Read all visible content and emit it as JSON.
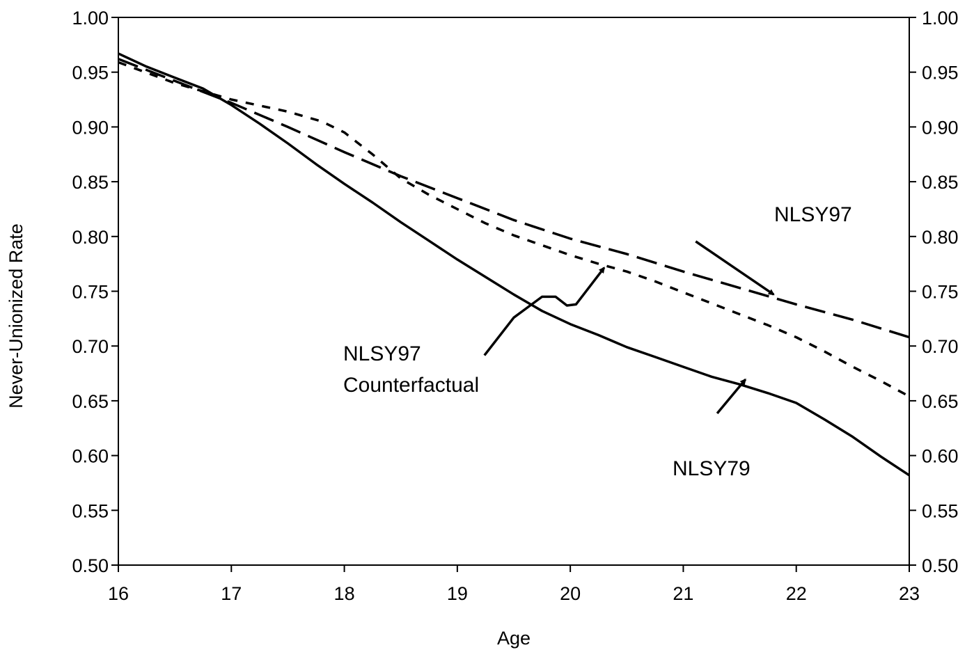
{
  "chart_data": {
    "type": "line",
    "title": "",
    "xlabel": "Age",
    "ylabel": "Never-Unionized Rate",
    "xlim": [
      16,
      23
    ],
    "ylim": [
      0.5,
      1.0
    ],
    "x_ticks": [
      "16",
      "17",
      "18",
      "19",
      "20",
      "21",
      "22",
      "23"
    ],
    "y_ticks": [
      "0.50",
      "0.55",
      "0.60",
      "0.65",
      "0.70",
      "0.75",
      "0.80",
      "0.85",
      "0.90",
      "0.95",
      "1.00"
    ],
    "right_axis": true,
    "grid": false,
    "legend": "none",
    "series": [
      {
        "name": "NLSY79",
        "style": "solid",
        "x": [
          16,
          16.25,
          16.5,
          16.75,
          17,
          17.25,
          17.5,
          17.75,
          18,
          18.25,
          18.5,
          18.75,
          19,
          19.25,
          19.5,
          19.75,
          20,
          20.25,
          20.5,
          20.75,
          21,
          21.25,
          21.5,
          21.75,
          22,
          22.25,
          22.5,
          22.75,
          23
        ],
        "y": [
          0.967,
          0.955,
          0.945,
          0.935,
          0.92,
          0.903,
          0.885,
          0.866,
          0.848,
          0.831,
          0.813,
          0.796,
          0.779,
          0.763,
          0.747,
          0.732,
          0.72,
          0.71,
          0.699,
          0.69,
          0.681,
          0.672,
          0.665,
          0.657,
          0.648,
          0.633,
          0.617,
          0.599,
          0.582
        ]
      },
      {
        "name": "NLSY97",
        "style": "dashed",
        "x": [
          16,
          16.5,
          17,
          17.5,
          18,
          18.5,
          19,
          19.5,
          20,
          20.5,
          21,
          21.5,
          22,
          22.5,
          23
        ],
        "y": [
          0.962,
          0.942,
          0.922,
          0.9,
          0.877,
          0.855,
          0.835,
          0.815,
          0.798,
          0.784,
          0.768,
          0.753,
          0.738,
          0.724,
          0.708
        ]
      },
      {
        "name": "NLSY97 Counterfactual",
        "style": "dotted",
        "x": [
          16,
          16.5,
          17,
          17.5,
          17.8,
          18,
          18.25,
          18.5,
          18.75,
          19,
          19.25,
          19.5,
          19.75,
          20,
          20.25,
          20.5,
          20.75,
          21,
          21.25,
          21.5,
          21.75,
          22,
          22.25,
          22.5,
          22.75,
          23
        ],
        "y": [
          0.959,
          0.94,
          0.925,
          0.914,
          0.905,
          0.895,
          0.875,
          0.853,
          0.838,
          0.825,
          0.812,
          0.801,
          0.792,
          0.783,
          0.775,
          0.768,
          0.759,
          0.749,
          0.739,
          0.729,
          0.719,
          0.708,
          0.695,
          0.681,
          0.668,
          0.654
        ]
      }
    ],
    "annotations": [
      {
        "id": "nlsy97",
        "lines": [
          "NLSY97"
        ],
        "text_x": 19.25,
        "text_y": 0.8015,
        "arrow_from": [
          21.11,
          0.7955
        ],
        "arrow_to": [
          21.8,
          0.747
        ]
      },
      {
        "id": "counterfactual",
        "lines": [
          "NLSY97",
          "Counterfactual"
        ],
        "text_y2": 0.6955,
        "text_x2": 17.99,
        "arrow_from": [
          19.24,
          0.6915
        ],
        "arrow_to": [
          20.3,
          0.7715
        ],
        "wiggle": [
          [
            19.24,
            0.6915
          ],
          [
            19.5,
            0.726
          ],
          [
            19.75,
            0.745
          ],
          [
            19.87,
            0.745
          ],
          [
            19.97,
            0.737
          ],
          [
            20.05,
            0.738
          ],
          [
            20.3,
            0.7715
          ]
        ]
      },
      {
        "id": "nlsy79",
        "lines": [
          "NLSY79"
        ],
        "text_y3": 0.6095,
        "text_x3": 20.88,
        "arrow_from": [
          21.3,
          0.6385
        ],
        "arrow_to": [
          21.55,
          0.6695
        ]
      }
    ],
    "labels": {
      "nlsy97": "NLSY97",
      "counterfactual_1": "NLSY97",
      "counterfactual_2": "Counterfactual",
      "nlsy79": "NLSY79"
    }
  }
}
